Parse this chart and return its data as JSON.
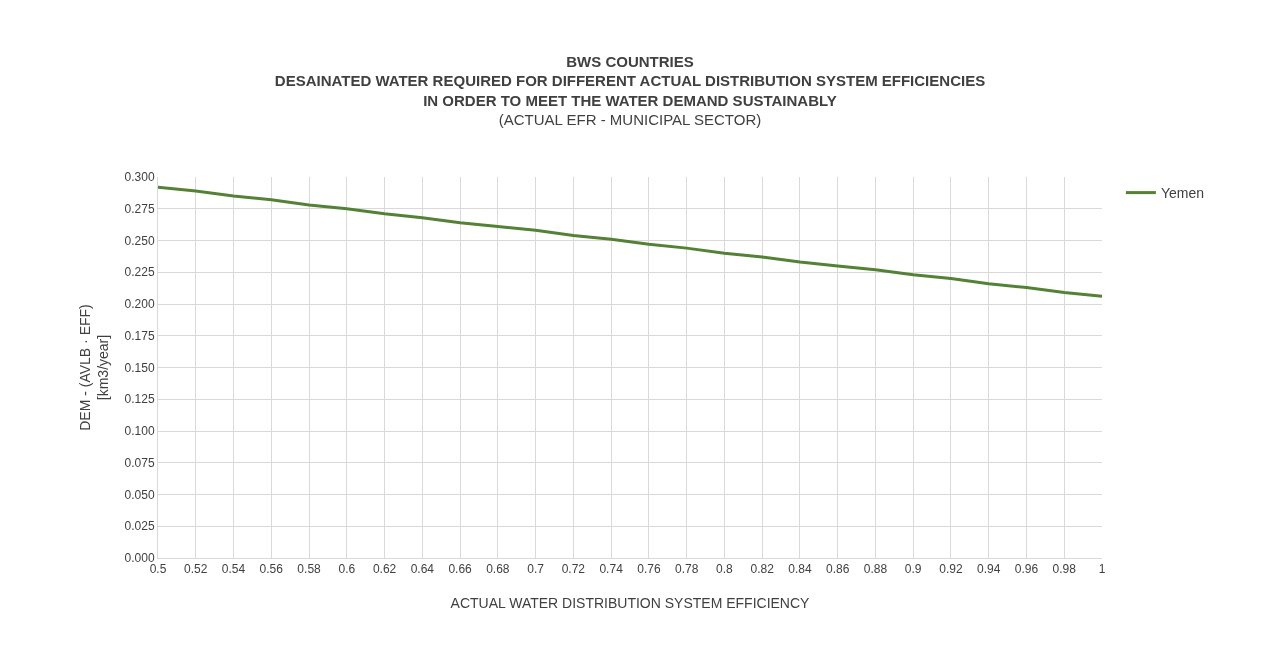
{
  "chart_data": {
    "type": "line",
    "title": "BWS COUNTRIES",
    "subtitle": "DESAINATED WATER REQUIRED FOR DIFFERENT ACTUAL DISTRIBUTION SYSTEM EFFICIENCIES\nIN ORDER TO MEET THE WATER DEMAND SUSTAINABLY",
    "annotations": [
      "(ACTUAL EFR - MUNICIPAL SECTOR)"
    ],
    "xlabel": "ACTUAL WATER DISTRIBUTION SYSTEM EFFICIENCY",
    "ylabel": "DEM - (AVLB · EFF)\n[km3/year]",
    "categories": [
      "0.5",
      "0.52",
      "0.54",
      "0.56",
      "0.58",
      "0.6",
      "0.62",
      "0.64",
      "0.66",
      "0.68",
      "0.7",
      "0.72",
      "0.74",
      "0.76",
      "0.78",
      "0.8",
      "0.82",
      "0.84",
      "0.86",
      "0.88",
      "0.9",
      "0.92",
      "0.94",
      "0.96",
      "0.98",
      "1"
    ],
    "series": [
      {
        "name": "Yemen",
        "color": "#548235",
        "values": [
          0.292,
          0.289,
          0.285,
          0.282,
          0.278,
          0.275,
          0.271,
          0.268,
          0.264,
          0.261,
          0.258,
          0.254,
          0.251,
          0.247,
          0.244,
          0.24,
          0.237,
          0.233,
          0.23,
          0.227,
          0.223,
          0.22,
          0.216,
          0.213,
          0.209,
          0.206
        ]
      }
    ],
    "ylim": [
      0,
      0.3
    ],
    "yticks": [
      {
        "value": 0,
        "label": "0.000"
      },
      {
        "value": 0.025,
        "label": "0.025"
      },
      {
        "value": 0.05,
        "label": "0.050"
      },
      {
        "value": 0.075,
        "label": "0.075"
      },
      {
        "value": 0.1,
        "label": "0.100"
      },
      {
        "value": 0.125,
        "label": "0.125"
      },
      {
        "value": 0.15,
        "label": "0.150"
      },
      {
        "value": 0.175,
        "label": "0.175"
      },
      {
        "value": 0.2,
        "label": "0.200"
      },
      {
        "value": 0.225,
        "label": "0.225"
      },
      {
        "value": 0.25,
        "label": "0.250"
      },
      {
        "value": 0.275,
        "label": "0.275"
      },
      {
        "value": 0.3,
        "label": "0.300"
      }
    ],
    "grid": true,
    "legend": "top right",
    "marker": "none",
    "line_style": "solid"
  }
}
